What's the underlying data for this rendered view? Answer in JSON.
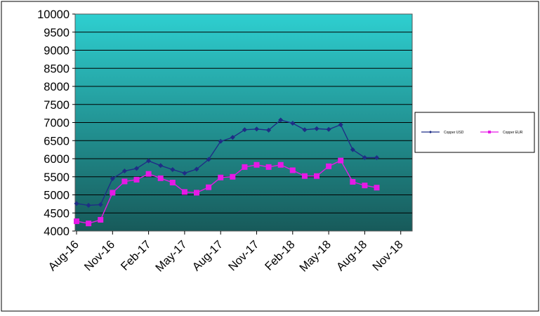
{
  "colors": {
    "plot_top": "#2ecfd0",
    "plot_bottom": "#175a5a",
    "gridline": "#000000",
    "series_usd": "#1f2d86",
    "series_eur": "#e619e6"
  },
  "chart_data": {
    "type": "line",
    "title": "",
    "xlabel": "",
    "ylabel": "",
    "ylim": [
      4000,
      10000
    ],
    "ytick_step": 500,
    "ytick_labels": [
      "4000",
      "4500",
      "5000",
      "5500",
      "6000",
      "6500",
      "7000",
      "7500",
      "8000",
      "8500",
      "9000",
      "9500",
      "10000"
    ],
    "xtick_labels": [
      "Aug-16",
      "Nov-16",
      "Feb-17",
      "May-17",
      "Aug-17",
      "Nov-17",
      "Feb-18",
      "May-18",
      "Aug-18",
      "Nov-18"
    ],
    "grid": true,
    "legend_position": "right",
    "x": [
      "Aug-16",
      "Sep-16",
      "Oct-16",
      "Nov-16",
      "Dec-16",
      "Jan-17",
      "Feb-17",
      "Mar-17",
      "Apr-17",
      "May-17",
      "Jun-17",
      "Jul-17",
      "Aug-17",
      "Sep-17",
      "Oct-17",
      "Nov-17",
      "Dec-17",
      "Jan-18",
      "Feb-18",
      "Mar-18",
      "Apr-18",
      "May-18",
      "Jun-18",
      "Jul-18",
      "Aug-18",
      "Sep-18"
    ],
    "series": [
      {
        "name": "Copper USD",
        "marker": "diamond",
        "values": [
          4760,
          4710,
          4730,
          5450,
          5660,
          5730,
          5940,
          5810,
          5700,
          5600,
          5710,
          5980,
          6480,
          6590,
          6800,
          6820,
          6790,
          7070,
          6980,
          6800,
          6830,
          6810,
          6940,
          6250,
          6030,
          6030
        ]
      },
      {
        "name": "Copper EUR",
        "marker": "square",
        "values": [
          4270,
          4210,
          4310,
          5060,
          5370,
          5420,
          5580,
          5460,
          5340,
          5080,
          5060,
          5210,
          5480,
          5500,
          5770,
          5830,
          5770,
          5830,
          5680,
          5520,
          5520,
          5790,
          5950,
          5360,
          5260,
          5200
        ]
      }
    ]
  }
}
